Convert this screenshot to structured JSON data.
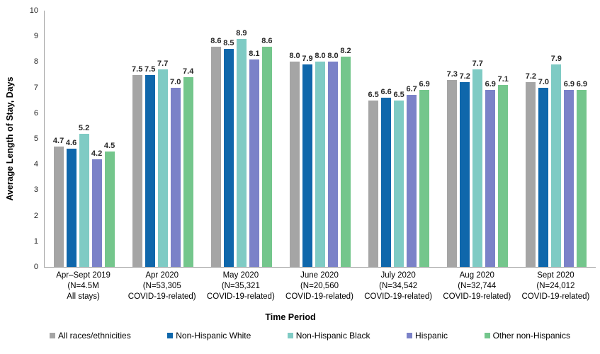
{
  "chart_data": {
    "type": "bar",
    "title": "",
    "xlabel": "Time Period",
    "ylabel": "Average Length of Stay, Days",
    "ylim": [
      0,
      10
    ],
    "ytick_step": 1,
    "grid": false,
    "legend_position": "bottom",
    "categories": [
      [
        "Apr–Sept 2019",
        "(N=4.5M",
        "All stays)"
      ],
      [
        "Apr 2020",
        "(N=53,305",
        "COVID-19-related)"
      ],
      [
        "May 2020",
        "(N=35,321",
        "COVID-19-related)"
      ],
      [
        "June 2020",
        "(N=20,560",
        "COVID-19-related)"
      ],
      [
        "July 2020",
        "(N=34,542",
        "COVID-19-related)"
      ],
      [
        "Aug 2020",
        "(N=32,744",
        "COVID-19-related)"
      ],
      [
        "Sept 2020",
        "(N=24,012",
        "COVID-19-related)"
      ]
    ],
    "series": [
      {
        "name": "All races/ethnicities",
        "color": "#a5a5a5",
        "values": [
          4.7,
          7.5,
          8.6,
          8.0,
          6.5,
          7.3,
          7.2
        ]
      },
      {
        "name": "Non-Hispanic White",
        "color": "#0f67ab",
        "values": [
          4.6,
          7.5,
          8.5,
          7.9,
          6.6,
          7.2,
          7.0
        ]
      },
      {
        "name": "Non-Hispanic Black",
        "color": "#7fcbc4",
        "values": [
          5.2,
          7.7,
          8.9,
          8.0,
          6.5,
          7.7,
          7.9
        ]
      },
      {
        "name": "Hispanic",
        "color": "#7b82c8",
        "values": [
          4.2,
          7.0,
          8.1,
          8.0,
          6.7,
          6.9,
          6.9
        ]
      },
      {
        "name": "Other non-Hispanics",
        "color": "#74c68c",
        "values": [
          4.5,
          7.4,
          8.6,
          8.2,
          6.9,
          7.1,
          6.9
        ]
      }
    ],
    "patterned_group_index": 0,
    "axis_color": "#a6a6a6"
  }
}
